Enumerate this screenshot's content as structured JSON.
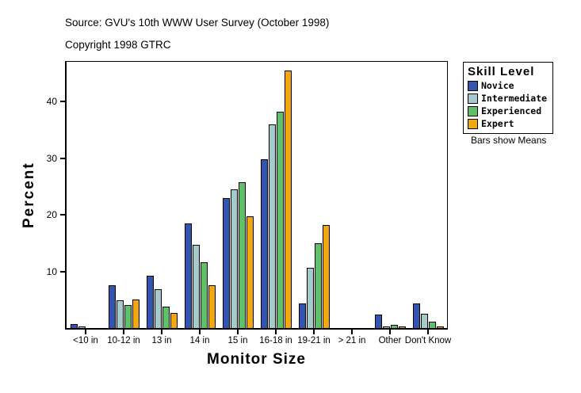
{
  "header": {
    "source_line": "Source: GVU's 10th WWW User Survey (October 1998)",
    "copyright_line": "Copyright 1998 GTRC"
  },
  "legend": {
    "title": "Skill Level",
    "note": "Bars show Means",
    "entries": [
      {
        "label": "Novice",
        "color": "#3355b0"
      },
      {
        "label": "Intermediate",
        "color": "#a6cacc"
      },
      {
        "label": "Experienced",
        "color": "#5ec169"
      },
      {
        "label": "Expert",
        "color": "#f2a60f"
      }
    ]
  },
  "chart_data": {
    "type": "bar",
    "title": "",
    "xlabel": "Monitor Size",
    "ylabel": "Percent",
    "ylim": [
      0,
      47
    ],
    "yticks": [
      10,
      20,
      30,
      40
    ],
    "grid": false,
    "legend_position": "right",
    "note": "Bars show Means",
    "bar_outline": "#000000",
    "categories": [
      "<10 in",
      "10-12 in",
      "13 in",
      "14 in",
      "15 in",
      "16-18 in",
      "19-21 in",
      "> 21 in",
      "Other",
      "Don't Know"
    ],
    "series": [
      {
        "name": "Novice",
        "color": "#3355b0",
        "values": [
          0.7,
          7.6,
          9.2,
          18.5,
          23.0,
          29.8,
          4.3,
          0,
          2.4,
          4.3
        ]
      },
      {
        "name": "Intermediate",
        "color": "#a6cacc",
        "values": [
          0.2,
          4.9,
          6.8,
          14.7,
          24.5,
          36.0,
          10.6,
          0,
          0.2,
          2.5
        ]
      },
      {
        "name": "Experienced",
        "color": "#5ec169",
        "values": [
          0,
          4.0,
          3.8,
          11.6,
          25.8,
          38.2,
          15.0,
          0,
          0.6,
          1.1
        ]
      },
      {
        "name": "Expert",
        "color": "#f2a60f",
        "values": [
          0,
          5.1,
          2.6,
          7.6,
          19.7,
          45.4,
          18.2,
          0,
          0.1,
          0.2
        ]
      }
    ]
  }
}
